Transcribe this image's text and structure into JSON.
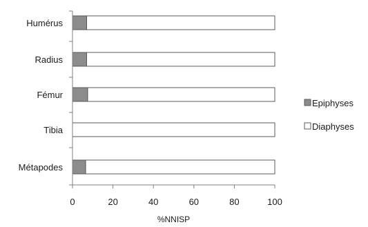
{
  "chart_data": {
    "type": "bar",
    "orientation": "horizontal",
    "stacked": true,
    "categories": [
      "Humérus",
      "Radius",
      "Fémur",
      "Tibia",
      "Métapodes"
    ],
    "series": [
      {
        "name": "Epiphyses",
        "values": [
          7,
          7,
          7.5,
          0,
          6.5
        ],
        "color": "#8c8c8c"
      },
      {
        "name": "Diaphyses",
        "values": [
          93,
          93,
          92.5,
          100,
          93.5
        ],
        "color": "#ffffff"
      }
    ],
    "xlabel": "%NNISP",
    "ylabel": "",
    "xlim": [
      0,
      100
    ],
    "xticks": [
      0,
      20,
      40,
      60,
      80,
      100
    ],
    "grid": false,
    "legend_position": "right"
  }
}
